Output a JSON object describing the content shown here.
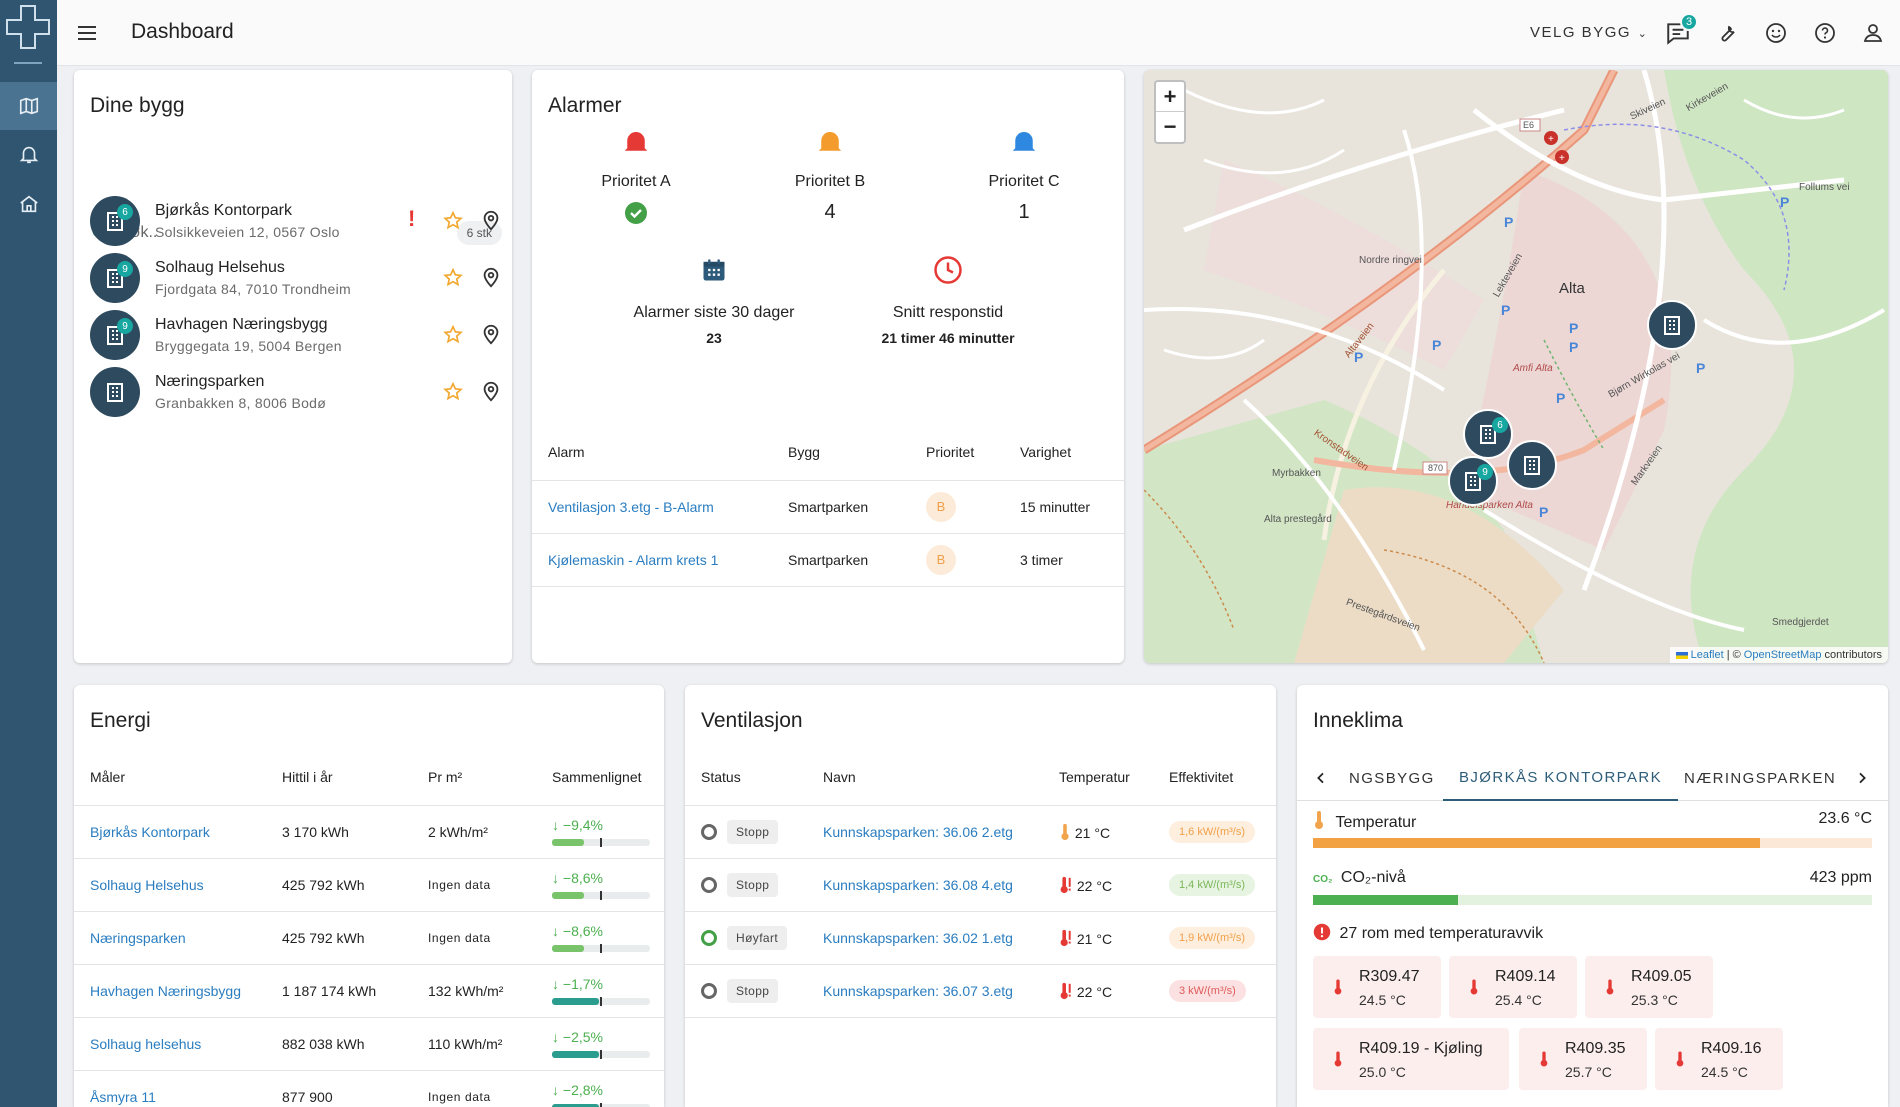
{
  "topbar": {
    "title": "Dashboard",
    "velg_bygg": "VELG BYGG",
    "messages_badge": "3"
  },
  "dine_bygg": {
    "title": "Dine bygg",
    "search_placeholder": "Søk..",
    "count": "6 stk",
    "buildings": [
      {
        "name": "Bjørkås Kontorpark",
        "address": "Solsikkeveien 12, 0567 Oslo",
        "badge": "6",
        "alert": "!"
      },
      {
        "name": "Solhaug Helsehus",
        "address": "Fjordgata 84, 7010 Trondheim",
        "badge": "9"
      },
      {
        "name": "Havhagen Næringsbygg",
        "address": "Bryggegata 19, 5004 Bergen",
        "badge": "9"
      },
      {
        "name": "Næringsparken",
        "address": "Granbakken 8, 8006 Bodø",
        "badge": ""
      }
    ]
  },
  "alarmer": {
    "title": "Alarmer",
    "prio_a": {
      "label": "Prioritet A",
      "color": "#e53935"
    },
    "prio_b": {
      "label": "Prioritet B",
      "value": "4",
      "color": "#f39c2d"
    },
    "prio_c": {
      "label": "Prioritet C",
      "value": "1",
      "color": "#2e88e0"
    },
    "last30": {
      "label": "Alarmer siste 30 dager",
      "value": "23"
    },
    "response": {
      "label": "Snitt responstid",
      "value": "21 timer 46 minutter"
    },
    "table": {
      "headers": [
        "Alarm",
        "Bygg",
        "Prioritet",
        "Varighet"
      ],
      "rows": [
        {
          "alarm": "Ventilasjon 3.etg - B-Alarm",
          "bygg": "Smartparken",
          "prioritet": "B",
          "varighet": "15 minutter"
        },
        {
          "alarm": "Kjølemaskin - Alarm krets 1",
          "bygg": "Smartparken",
          "prioritet": "B",
          "varighet": "3 timer"
        }
      ]
    }
  },
  "map": {
    "zoom_in": "+",
    "zoom_out": "−",
    "attribution_leaflet": "Leaflet",
    "attribution_sep": "| ©",
    "attribution_osm": "OpenStreetMap",
    "attribution_tail": "contributors",
    "labels": [
      "Alta",
      "Alta prestegård",
      "Smedgjerdet",
      "E6",
      "870",
      "Altaveien",
      "Kronstadveien",
      "Markveien",
      "Bjørn Wirkolas vei",
      "Amfi Alta",
      "Handelsparken Alta",
      "Nordre ringvei",
      "Lekteveien",
      "Follums vei",
      "Prestegårdsveien",
      "Myrbakken",
      "Kirkeveien",
      "Skiveien"
    ],
    "markers": [
      {
        "badge": ""
      },
      {
        "badge": "6"
      },
      {
        "badge": ""
      },
      {
        "badge": "9"
      }
    ]
  },
  "energi": {
    "title": "Energi",
    "headers": [
      "Måler",
      "Hittil i år",
      "Pr m²",
      "Sammenlignet"
    ],
    "rows": [
      {
        "maler": "Bjørkås Kontorpark",
        "hittil": "3 170 kWh",
        "prm2": "2 kWh/m²",
        "cmp": "−9,4%",
        "fill_pct": 33
      },
      {
        "maler": "Solhaug Helsehus",
        "hittil": "425 792 kWh",
        "prm2": "Ingen data",
        "cmp": "−8,6%",
        "fill_pct": 33
      },
      {
        "maler": "Næringsparken",
        "hittil": "425 792 kWh",
        "prm2": "Ingen data",
        "cmp": "−8,6%",
        "fill_pct": 33
      },
      {
        "maler": "Havhagen Næringsbygg",
        "hittil": "1 187 174 kWh",
        "prm2": "132 kWh/m²",
        "cmp": "−1,7%",
        "fill_pct": 48
      },
      {
        "maler": "Solhaug helsehus",
        "hittil": "882 038 kWh",
        "prm2": "110 kWh/m²",
        "cmp": "−2,5%",
        "fill_pct": 48
      },
      {
        "maler": "Åsmyra 11",
        "hittil": "877 900",
        "prm2": "Ingen data",
        "cmp": "−2,8%",
        "fill_pct": 48
      }
    ]
  },
  "ventilasjon": {
    "title": "Ventilasjon",
    "headers": [
      "Status",
      "Navn",
      "Temperatur",
      "Effektivitet"
    ],
    "rows": [
      {
        "state": "Stopp",
        "on": false,
        "navn": "Kunnskapsparken: 36.06 2.etg",
        "temp": "21 °C",
        "warn": false,
        "eff": "1,6 kW/(m³/s)",
        "eff_bg": "#fdeedd",
        "eff_fg": "#f0a04a"
      },
      {
        "state": "Stopp",
        "on": false,
        "navn": "Kunnskapsparken: 36.08 4.etg",
        "temp": "22 °C",
        "warn": true,
        "eff": "1,4 kW/(m³/s)",
        "eff_bg": "#e6f4e1",
        "eff_fg": "#7cb65a"
      },
      {
        "state": "Høyfart",
        "on": true,
        "navn": "Kunnskapsparken: 36.02 1.etg",
        "temp": "21 °C",
        "warn": true,
        "eff": "1,9 kW/(m³/s)",
        "eff_bg": "#fdeedd",
        "eff_fg": "#f0a04a"
      },
      {
        "state": "Stopp",
        "on": false,
        "navn": "Kunnskapsparken: 36.07 3.etg",
        "temp": "22 °C",
        "warn": true,
        "eff": "3 kW/(m³/s)",
        "eff_bg": "#fbe1e1",
        "eff_fg": "#e05a5a"
      }
    ]
  },
  "inneklima": {
    "title": "Inneklima",
    "tabs": [
      "NGSBYGG",
      "BJØRKÅS KONTORPARK",
      "NÆRINGSPARKEN"
    ],
    "temperature": {
      "label": "Temperatur",
      "value": "23.6 °C",
      "level_pct": 80
    },
    "co2": {
      "label": "CO₂-nivå",
      "value": "423 ppm",
      "level_pct": 26
    },
    "deviation": "27 rom med temperaturavvik",
    "rooms": [
      {
        "name": "R309.47",
        "temp": "24.5 °C"
      },
      {
        "name": "R409.14",
        "temp": "25.4 °C"
      },
      {
        "name": "R409.05",
        "temp": "25.3 °C"
      },
      {
        "name": "R409.19 - Kjøling",
        "temp": "25.0 °C"
      },
      {
        "name": "R409.35",
        "temp": "25.7 °C"
      },
      {
        "name": "R409.16",
        "temp": "24.5 °C"
      }
    ]
  }
}
